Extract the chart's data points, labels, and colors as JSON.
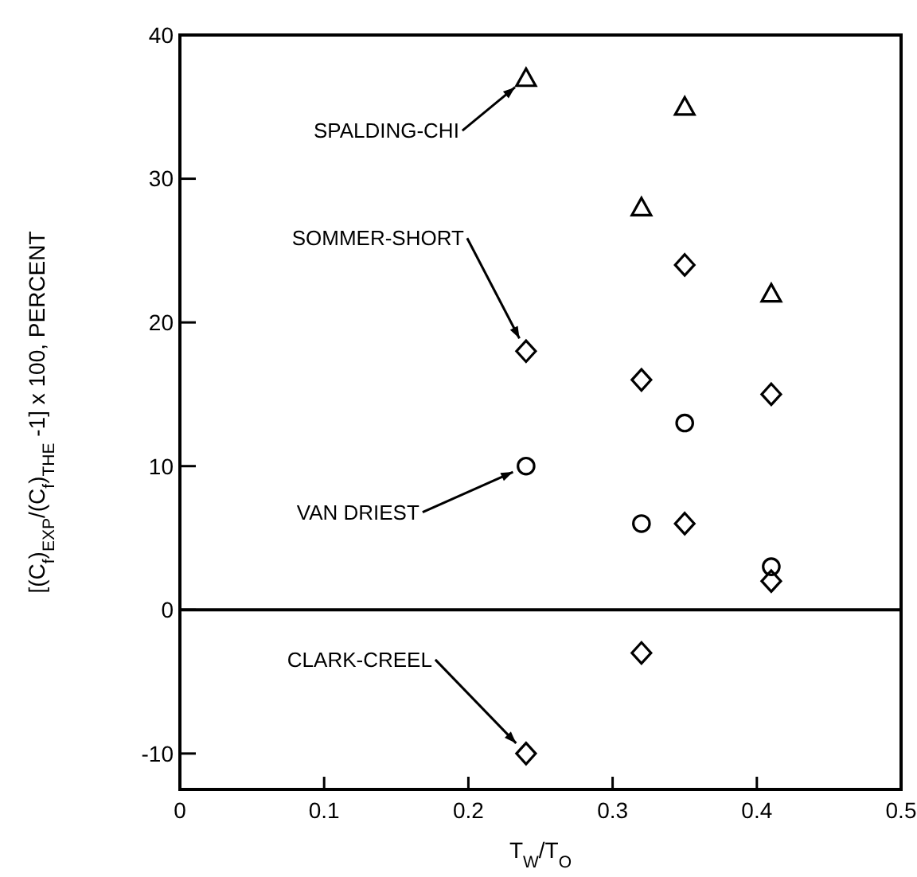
{
  "chart_data": {
    "type": "scatter",
    "xlabel": "T$_{W}$/T$_{O}$",
    "ylabel": "[(C$_{f}$)$_{EXP}$/(C$_{f}$)$_{THE}$ -1] x 100, PERCENT",
    "series": [
      {
        "name": "SPALDING-CHI",
        "color": "#000000",
        "marker": "triangle",
        "x": [
          0.24,
          0.32,
          0.35,
          0.41
        ],
        "values": [
          37,
          28,
          35,
          22
        ]
      },
      {
        "name": "SOMMER-SHORT",
        "color": "#000000",
        "marker": "diamond",
        "x": [
          0.24,
          0.32,
          0.35,
          0.41
        ],
        "values": [
          18,
          16,
          24,
          15
        ]
      },
      {
        "name": "VAN DRIEST",
        "color": "#000000",
        "marker": "circle",
        "x": [
          0.24,
          0.32,
          0.35,
          0.41
        ],
        "values": [
          10,
          6,
          13,
          3
        ]
      },
      {
        "name": "CLARK-CREEL",
        "color": "#000000",
        "marker": "diamond",
        "x": [
          0.24,
          0.32,
          0.35,
          0.41
        ],
        "values": [
          -10,
          -3,
          6,
          2
        ]
      }
    ],
    "xlim": [
      0,
      0.5
    ],
    "xticks": [
      0,
      0.1,
      0.2,
      0.3,
      0.4,
      0.5
    ],
    "ylim": [
      -12.5,
      40
    ],
    "yticks": [
      -10,
      0,
      10,
      20,
      30,
      40
    ],
    "ref_lines": [
      {
        "axis": "y",
        "value": 0
      }
    ],
    "grid": false
  }
}
